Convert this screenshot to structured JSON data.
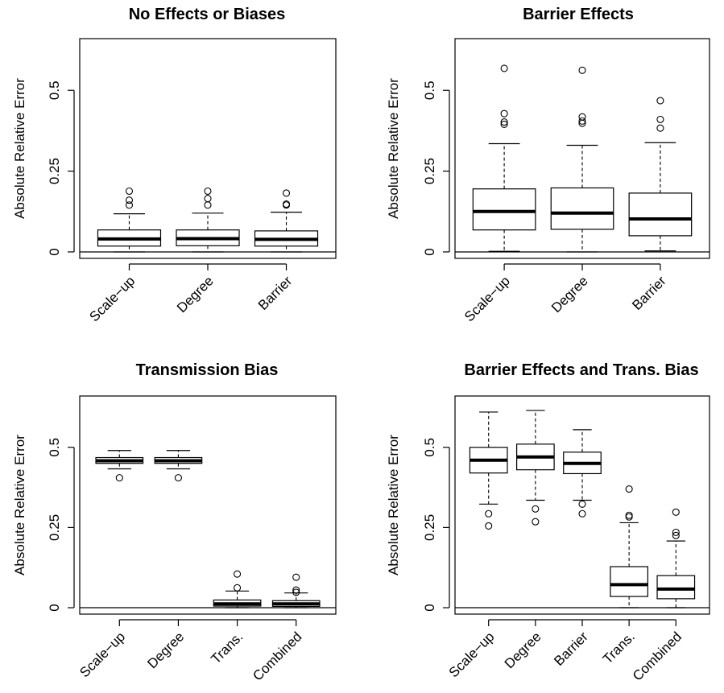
{
  "chart_data": [
    {
      "type": "box",
      "title": "No Effects or Biases",
      "xlabel": "",
      "ylabel": "Absolute Relative Error",
      "ylim": [
        -0.02,
        0.66
      ],
      "yticks": [
        0,
        0.25,
        0.5
      ],
      "ytick_labels": [
        "0",
        "0.25",
        "0.5"
      ],
      "reference_line": 0,
      "categories": [
        "Scale−up",
        "Degree",
        "Barrier"
      ],
      "boxes": [
        {
          "whisker_low": 0.0,
          "q1": 0.018,
          "median": 0.04,
          "q3": 0.068,
          "whisker_high": 0.118,
          "outliers": [
            0.145,
            0.16,
            0.188
          ]
        },
        {
          "whisker_low": 0.0,
          "q1": 0.019,
          "median": 0.041,
          "q3": 0.068,
          "whisker_high": 0.12,
          "outliers": [
            0.145,
            0.165,
            0.188
          ]
        },
        {
          "whisker_low": 0.0,
          "q1": 0.018,
          "median": 0.039,
          "q3": 0.065,
          "whisker_high": 0.123,
          "outliers": [
            0.145,
            0.148,
            0.182
          ]
        }
      ]
    },
    {
      "type": "box",
      "title": "Barrier Effects",
      "xlabel": "",
      "ylabel": "Absolute Relative Error",
      "ylim": [
        -0.02,
        0.66
      ],
      "yticks": [
        0,
        0.25,
        0.5
      ],
      "ytick_labels": [
        "0",
        "0.25",
        "0.5"
      ],
      "reference_line": 0,
      "categories": [
        "Scale−up",
        "Degree",
        "Barrier"
      ],
      "boxes": [
        {
          "whisker_low": 0.002,
          "q1": 0.068,
          "median": 0.125,
          "q3": 0.195,
          "whisker_high": 0.335,
          "outliers": [
            0.395,
            0.402,
            0.428,
            0.568
          ]
        },
        {
          "whisker_low": 0.0,
          "q1": 0.07,
          "median": 0.12,
          "q3": 0.198,
          "whisker_high": 0.33,
          "outliers": [
            0.398,
            0.405,
            0.418,
            0.562
          ]
        },
        {
          "whisker_low": 0.003,
          "q1": 0.05,
          "median": 0.102,
          "q3": 0.182,
          "whisker_high": 0.338,
          "outliers": [
            0.383,
            0.41,
            0.468
          ]
        }
      ]
    },
    {
      "type": "box",
      "title": "Transmission Bias",
      "xlabel": "",
      "ylabel": "Absolute Relative Error",
      "ylim": [
        -0.02,
        0.66
      ],
      "yticks": [
        0,
        0.25,
        0.5
      ],
      "ytick_labels": [
        "0",
        "0.25",
        "0.5"
      ],
      "reference_line": 0,
      "categories": [
        "Scale−up",
        "Degree",
        "Trans.",
        "Combined"
      ],
      "boxes": [
        {
          "whisker_low": 0.433,
          "q1": 0.45,
          "median": 0.458,
          "q3": 0.468,
          "whisker_high": 0.49,
          "outliers": [
            0.405
          ]
        },
        {
          "whisker_low": 0.433,
          "q1": 0.45,
          "median": 0.458,
          "q3": 0.468,
          "whisker_high": 0.49,
          "outliers": [
            0.405
          ]
        },
        {
          "whisker_low": 0.0,
          "q1": 0.005,
          "median": 0.012,
          "q3": 0.024,
          "whisker_high": 0.052,
          "outliers": [
            0.062,
            0.105
          ]
        },
        {
          "whisker_low": 0.0,
          "q1": 0.004,
          "median": 0.012,
          "q3": 0.022,
          "whisker_high": 0.046,
          "outliers": [
            0.048,
            0.055,
            0.095
          ]
        }
      ]
    },
    {
      "type": "box",
      "title": "Barrier Effects and Trans. Bias",
      "xlabel": "",
      "ylabel": "Absolute Relative Error",
      "ylim": [
        -0.02,
        0.66
      ],
      "yticks": [
        0,
        0.25,
        0.5
      ],
      "ytick_labels": [
        "0",
        "0.25",
        "0.5"
      ],
      "reference_line": 0,
      "categories": [
        "Scale−up",
        "Degree",
        "Barrier",
        "Trans.",
        "Combined"
      ],
      "boxes": [
        {
          "whisker_low": 0.323,
          "q1": 0.42,
          "median": 0.46,
          "q3": 0.5,
          "whisker_high": 0.61,
          "outliers": [
            0.255,
            0.293
          ]
        },
        {
          "whisker_low": 0.335,
          "q1": 0.43,
          "median": 0.47,
          "q3": 0.51,
          "whisker_high": 0.615,
          "outliers": [
            0.268,
            0.308
          ]
        },
        {
          "whisker_low": 0.335,
          "q1": 0.418,
          "median": 0.45,
          "q3": 0.485,
          "whisker_high": 0.555,
          "outliers": [
            0.293,
            0.323
          ]
        },
        {
          "whisker_low": 0.0,
          "q1": 0.035,
          "median": 0.072,
          "q3": 0.128,
          "whisker_high": 0.265,
          "outliers": [
            0.283,
            0.288,
            0.37
          ]
        },
        {
          "whisker_low": 0.0,
          "q1": 0.028,
          "median": 0.058,
          "q3": 0.1,
          "whisker_high": 0.208,
          "outliers": [
            0.225,
            0.235,
            0.298
          ]
        }
      ]
    }
  ]
}
